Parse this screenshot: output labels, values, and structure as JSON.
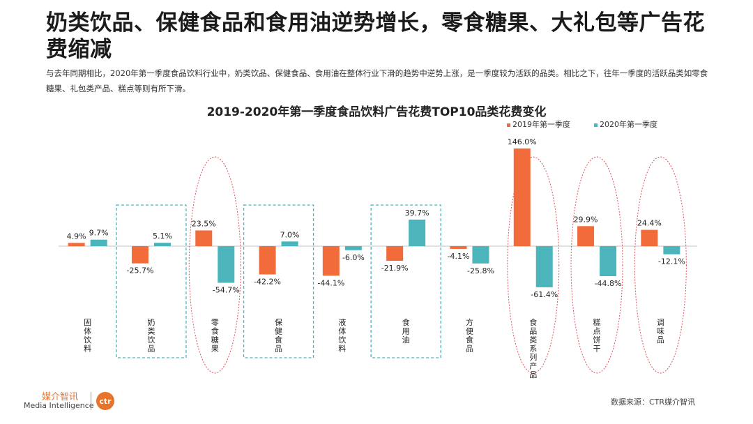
{
  "header": {
    "title": "奶类饮品、保健食品和食用油逆势增长，零食糖果、大礼包等广告花费缩减",
    "description": "与去年同期相比，2020年第一季度食品饮料行业中，奶类饮品、保健食品、食用油在整体行业下滑的趋势中逆势上涨，是一季度较为活跃的品类。相比之下，往年一季度的活跃品类如零食糖果、礼包类产品、糕点等则有所下滑。"
  },
  "chart_data": {
    "type": "bar",
    "title": "2019-2020年第一季度食品饮料广告花费TOP10品类花费变化",
    "categories": [
      "固体饮料",
      "奶类饮品",
      "零食糖果",
      "保健食品",
      "液体饮料",
      "食用油",
      "方便食品",
      "食品类系列产品",
      "糕点饼干",
      "调味品"
    ],
    "series": [
      {
        "name": "2019年第一季度",
        "color": "#f26b3a",
        "values": [
          4.9,
          -25.7,
          23.5,
          -42.2,
          -44.1,
          -21.9,
          -4.1,
          146.0,
          29.9,
          24.4
        ]
      },
      {
        "name": "2020年第一季度",
        "color": "#4bb5bb",
        "values": [
          9.7,
          5.1,
          -54.7,
          7.0,
          -6.0,
          39.7,
          -25.8,
          -61.4,
          -44.8,
          -12.1
        ]
      }
    ],
    "value_suffix": "%",
    "ylim": [
      -65,
      150
    ],
    "grid": false,
    "legend_position": "top-right",
    "highlight_dashed_box": [
      "奶类饮品",
      "保健食品",
      "食用油"
    ],
    "highlight_red_ellipse": [
      "零食糖果",
      "食品类系列产品",
      "糕点饼干",
      "调味品"
    ]
  },
  "footer": {
    "source": "数据来源：CTR媒介智讯",
    "logo_cn": "媒介智讯",
    "logo_en": "Media Intelligence",
    "logo_mark": "ctr"
  }
}
